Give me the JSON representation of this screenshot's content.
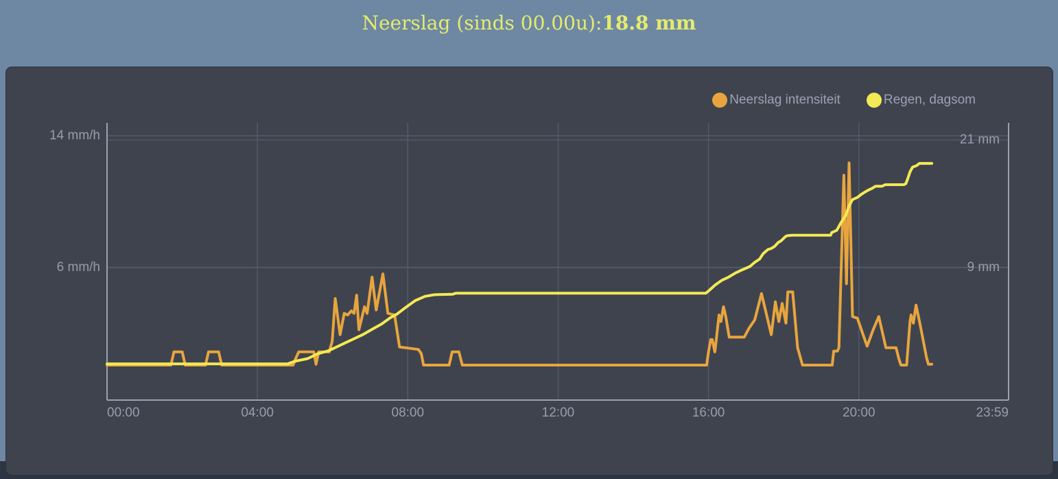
{
  "header": {
    "title_prefix": "Neerslag (sinds 00.00u): ",
    "title_value": "18.8 mm"
  },
  "legend": [
    {
      "label": "Neerslag intensiteit",
      "color": "#e8a53e"
    },
    {
      "label": "Regen, dagsom",
      "color": "#f3ea55"
    }
  ],
  "colors": {
    "page_top_bg": "#6e88a4",
    "page_bottom_bg": "#2d3542",
    "panel_bg": "#3f434e",
    "panel_border": "#2e323c",
    "grid": "#525a69",
    "axis_line": "#9aa2b2",
    "tick_text": "#959eac",
    "legend_text": "#9aa3b2",
    "title_text": "#e5eb6d"
  },
  "chart_data": {
    "type": "line",
    "title": "Neerslag (sinds 00.00u): 18.8 mm",
    "grid": true,
    "legend_position": "top-right",
    "x_axis": {
      "range": [
        0,
        23.983
      ],
      "unit": "time of day (hours)",
      "ticks": [
        {
          "t": 0,
          "label": "00:00",
          "grid": false,
          "align": "left"
        },
        {
          "t": 4,
          "label": "04:00",
          "grid": true,
          "align": "center"
        },
        {
          "t": 8,
          "label": "08:00",
          "grid": true,
          "align": "center"
        },
        {
          "t": 12,
          "label": "12:00",
          "grid": true,
          "align": "center"
        },
        {
          "t": 16,
          "label": "16:00",
          "grid": true,
          "align": "center"
        },
        {
          "t": 20,
          "label": "20:00",
          "grid": true,
          "align": "center"
        },
        {
          "t": 23.983,
          "label": "23:59",
          "grid": false,
          "align": "right"
        }
      ]
    },
    "y_axis_left": {
      "unit": "mm/h",
      "range": [
        -2.08,
        14.79
      ],
      "ticks": [
        {
          "v": 6,
          "label": "6 mm/h"
        },
        {
          "v": 14,
          "label": "14 mm/h"
        }
      ]
    },
    "y_axis_right": {
      "unit": "mm",
      "range": [
        -3.45,
        22.61
      ],
      "ticks": [
        {
          "v": 9,
          "label": "9 mm"
        },
        {
          "v": 21,
          "label": "21 mm"
        }
      ]
    },
    "series": [
      {
        "name": "Neerslag intensiteit",
        "axis": "left",
        "unit": "mm/h",
        "color": "#e8a53e",
        "points": [
          [
            0,
            0.05
          ],
          [
            1.7,
            0.05
          ],
          [
            1.78,
            0.85
          ],
          [
            2.0,
            0.85
          ],
          [
            2.08,
            0.05
          ],
          [
            2.62,
            0.05
          ],
          [
            2.7,
            0.85
          ],
          [
            2.97,
            0.85
          ],
          [
            3.05,
            0.05
          ],
          [
            4.95,
            0.05
          ],
          [
            5.02,
            0.45
          ],
          [
            5.1,
            0.85
          ],
          [
            5.43,
            0.85
          ],
          [
            5.5,
            0.85
          ],
          [
            5.56,
            0.1
          ],
          [
            5.63,
            0.85
          ],
          [
            5.91,
            0.85
          ],
          [
            5.99,
            1.5
          ],
          [
            6.07,
            4.1
          ],
          [
            6.2,
            1.9
          ],
          [
            6.31,
            3.2
          ],
          [
            6.4,
            3.1
          ],
          [
            6.5,
            3.35
          ],
          [
            6.57,
            3.2
          ],
          [
            6.64,
            4.3
          ],
          [
            6.7,
            2.2
          ],
          [
            6.85,
            3.6
          ],
          [
            6.92,
            3.2
          ],
          [
            7.05,
            5.4
          ],
          [
            7.16,
            3.4
          ],
          [
            7.34,
            5.6
          ],
          [
            7.47,
            3.2
          ],
          [
            7.65,
            3.1
          ],
          [
            7.78,
            1.15
          ],
          [
            8.28,
            1.0
          ],
          [
            8.36,
            0.75
          ],
          [
            8.42,
            0.05
          ],
          [
            9.1,
            0.05
          ],
          [
            9.18,
            0.85
          ],
          [
            9.36,
            0.85
          ],
          [
            9.45,
            0.05
          ],
          [
            15.95,
            0.05
          ],
          [
            16.0,
            0.85
          ],
          [
            16.06,
            1.6
          ],
          [
            16.1,
            1.6
          ],
          [
            16.17,
            0.85
          ],
          [
            16.28,
            3.1
          ],
          [
            16.33,
            2.7
          ],
          [
            16.4,
            3.6
          ],
          [
            16.46,
            3.0
          ],
          [
            16.55,
            1.75
          ],
          [
            16.95,
            1.75
          ],
          [
            17.08,
            2.3
          ],
          [
            17.23,
            2.8
          ],
          [
            17.41,
            4.4
          ],
          [
            17.67,
            1.9
          ],
          [
            17.78,
            3.9
          ],
          [
            17.87,
            2.7
          ],
          [
            17.96,
            3.8
          ],
          [
            18.06,
            2.6
          ],
          [
            18.11,
            4.5
          ],
          [
            18.24,
            4.5
          ],
          [
            18.37,
            1.1
          ],
          [
            18.5,
            0.05
          ],
          [
            19.29,
            0.05
          ],
          [
            19.33,
            0.9
          ],
          [
            19.43,
            0.9
          ],
          [
            19.47,
            1.1
          ],
          [
            19.6,
            11.6
          ],
          [
            19.67,
            5.0
          ],
          [
            19.74,
            12.35
          ],
          [
            19.83,
            3.0
          ],
          [
            19.96,
            2.9
          ],
          [
            20.22,
            1.2
          ],
          [
            20.38,
            2.2
          ],
          [
            20.53,
            3.0
          ],
          [
            20.72,
            1.1
          ],
          [
            20.99,
            1.1
          ],
          [
            21.06,
            0.45
          ],
          [
            21.12,
            0.05
          ],
          [
            21.27,
            0.05
          ],
          [
            21.36,
            2.7
          ],
          [
            21.39,
            3.1
          ],
          [
            21.45,
            2.6
          ],
          [
            21.52,
            3.7
          ],
          [
            21.63,
            2.5
          ],
          [
            21.8,
            0.5
          ],
          [
            21.85,
            0.1
          ],
          [
            21.94,
            0.1
          ]
        ]
      },
      {
        "name": "Regen, dagsom",
        "axis": "right",
        "unit": "mm",
        "color": "#f3ea55",
        "points": [
          [
            0,
            -0.05
          ],
          [
            4.8,
            -0.05
          ],
          [
            5.0,
            0.2
          ],
          [
            5.34,
            0.45
          ],
          [
            5.6,
            0.9
          ],
          [
            5.9,
            1.2
          ],
          [
            6.2,
            1.7
          ],
          [
            6.5,
            2.2
          ],
          [
            6.8,
            2.7
          ],
          [
            7.05,
            3.2
          ],
          [
            7.3,
            3.7
          ],
          [
            7.54,
            4.3
          ],
          [
            7.7,
            4.6
          ],
          [
            7.96,
            5.3
          ],
          [
            8.2,
            5.9
          ],
          [
            8.46,
            6.3
          ],
          [
            8.7,
            6.45
          ],
          [
            9.2,
            6.5
          ],
          [
            9.28,
            6.6
          ],
          [
            15.93,
            6.6
          ],
          [
            16.0,
            6.8
          ],
          [
            16.17,
            7.35
          ],
          [
            16.35,
            7.8
          ],
          [
            16.53,
            8.1
          ],
          [
            16.72,
            8.5
          ],
          [
            16.9,
            8.8
          ],
          [
            17.1,
            9.1
          ],
          [
            17.23,
            9.5
          ],
          [
            17.36,
            9.8
          ],
          [
            17.45,
            10.3
          ],
          [
            17.58,
            10.7
          ],
          [
            17.67,
            10.8
          ],
          [
            17.76,
            11.0
          ],
          [
            17.85,
            11.35
          ],
          [
            17.94,
            11.55
          ],
          [
            18.04,
            11.9
          ],
          [
            18.09,
            12.0
          ],
          [
            18.22,
            12.05
          ],
          [
            19.25,
            12.05
          ],
          [
            19.28,
            12.3
          ],
          [
            19.41,
            12.5
          ],
          [
            19.52,
            13.2
          ],
          [
            19.65,
            13.9
          ],
          [
            19.74,
            14.8
          ],
          [
            19.83,
            15.4
          ],
          [
            19.96,
            15.6
          ],
          [
            20.07,
            15.9
          ],
          [
            20.16,
            16.1
          ],
          [
            20.26,
            16.3
          ],
          [
            20.35,
            16.45
          ],
          [
            20.44,
            16.65
          ],
          [
            20.62,
            16.65
          ],
          [
            20.7,
            16.8
          ],
          [
            21.2,
            16.8
          ],
          [
            21.25,
            16.9
          ],
          [
            21.3,
            17.35
          ],
          [
            21.36,
            18.0
          ],
          [
            21.43,
            18.45
          ],
          [
            21.54,
            18.6
          ],
          [
            21.61,
            18.8
          ],
          [
            21.94,
            18.8
          ]
        ]
      }
    ]
  }
}
